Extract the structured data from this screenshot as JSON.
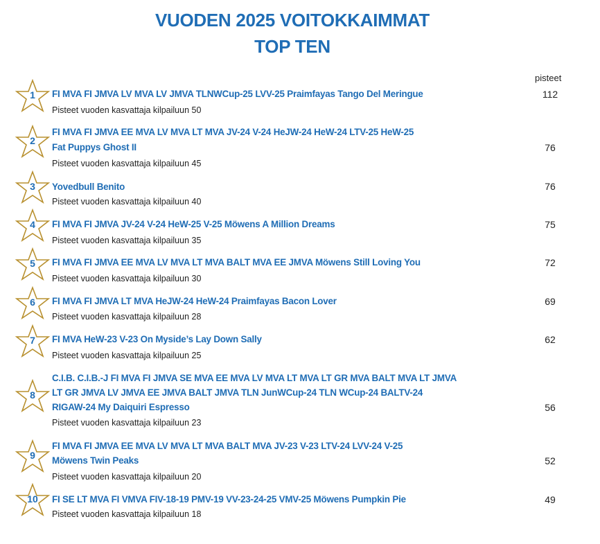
{
  "title_line1": "VUODEN 2025 VOITOKKAIMMAT",
  "title_line2": "TOP TEN",
  "points_header": "pisteet",
  "entries": [
    {
      "rank": "1",
      "lines": [
        "FI MVA FI JMVA LV MVA LV JMVA TLNWCup-25 LVV-25 Praimfayas Tango Del Meringue"
      ],
      "sub": "Pisteet vuoden kasvattaja kilpailuun 50",
      "points": "112"
    },
    {
      "rank": "2",
      "lines": [
        "FI MVA FI JMVA EE MVA LV MVA LT MVA JV-24 V-24 HeJW-24 HeW-24 LTV-25 HeW-25",
        "Fat Puppys Ghost II"
      ],
      "sub": "Pisteet vuoden kasvattaja kilpailuun 45",
      "points": "76"
    },
    {
      "rank": "3",
      "lines": [
        " Yovedbull Benito"
      ],
      "sub": "Pisteet vuoden kasvattaja kilpailuun 40",
      "points": "76"
    },
    {
      "rank": "4",
      "lines": [
        "FI MVA FI JMVA JV-24 V-24 HeW-25 V-25 Möwens A Million Dreams"
      ],
      "sub": "Pisteet vuoden kasvattaja kilpailuun 35",
      "points": "75"
    },
    {
      "rank": "5",
      "lines": [
        "FI MVA FI JMVA EE MVA LV MVA LT MVA BALT MVA EE JMVA Möwens Still Loving You"
      ],
      "sub": "Pisteet vuoden kasvattaja kilpailuun 30",
      "points": "72"
    },
    {
      "rank": "6",
      "lines": [
        "FI MVA FI JMVA LT MVA HeJW-24 HeW-24 Praimfayas Bacon Lover"
      ],
      "sub": "Pisteet vuoden kasvattaja kilpailuun 28",
      "points": "69"
    },
    {
      "rank": "7",
      "lines": [
        "FI MVA HeW-23 V-23 On Myside’s Lay Down Sally"
      ],
      "sub": "Pisteet vuoden kasvattaja kilpailuun 25",
      "points": "62"
    },
    {
      "rank": "8",
      "lines": [
        "C.I.B. C.I.B.-J FI MVA FI JMVA SE MVA EE MVA LV MVA LT MVA LT GR MVA BALT MVA LT JMVA",
        "LT GR JMVA LV JMVA EE JMVA BALT JMVA TLN JunWCup-24 TLN WCup-24 BALTV-24",
        "RIGAW-24  My Daiquiri Espresso"
      ],
      "sub": "Pisteet vuoden kasvattaja kilpailuun 23",
      "points": "56"
    },
    {
      "rank": "9",
      "lines": [
        "FI MVA FI JMVA EE MVA LV MVA LT MVA BALT MVA JV-23 V-23 LTV-24 LVV-24 V-25",
        "Möwens Twin Peaks"
      ],
      "sub": "Pisteet vuoden kasvattaja kilpailuun 20",
      "points": "52"
    },
    {
      "rank": "10",
      "lines": [
        "FI SE LT MVA FI VMVA FIV-18-19 PMV-19 VV-23-24-25 VMV-25 Möwens Pumpkin Pie"
      ],
      "sub": "Pisteet vuoden kasvattaja kilpailuun 18",
      "points": "49"
    }
  ],
  "colors": {
    "accent": "#1f6db5",
    "star_outline": "#b8902f"
  }
}
